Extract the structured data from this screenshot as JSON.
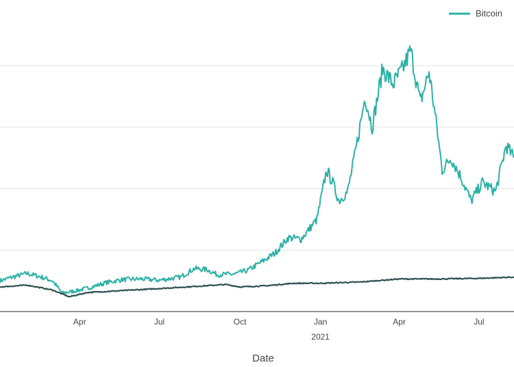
{
  "chart_data": {
    "type": "line",
    "title": "",
    "xlabel": "Date",
    "ylabel": "",
    "grid": true,
    "legend_position": "top-right",
    "x_ticks": [
      {
        "date": "2020-04-01",
        "label": "Apr",
        "sub": ""
      },
      {
        "date": "2020-07-01",
        "label": "Jul",
        "sub": ""
      },
      {
        "date": "2020-10-01",
        "label": "Oct",
        "sub": ""
      },
      {
        "date": "2021-01-01",
        "label": "Jan",
        "sub": "2021"
      },
      {
        "date": "2021-04-01",
        "label": "Apr",
        "sub": ""
      },
      {
        "date": "2021-07-01",
        "label": "Jul",
        "sub": ""
      }
    ],
    "xlim": [
      "2020-01-01",
      "2021-08-10"
    ],
    "ylim": [
      0,
      4.4
    ],
    "gridlines": [
      0,
      1,
      2,
      3,
      4
    ],
    "series": [
      {
        "name": "Bitcoin",
        "color": "#2ab0a5",
        "legend": true,
        "points": [
          [
            "2020-01-01",
            0.5
          ],
          [
            "2020-01-15",
            0.56
          ],
          [
            "2020-02-01",
            0.62
          ],
          [
            "2020-02-15",
            0.57
          ],
          [
            "2020-03-01",
            0.5
          ],
          [
            "2020-03-12",
            0.3
          ],
          [
            "2020-03-25",
            0.33
          ],
          [
            "2020-04-10",
            0.38
          ],
          [
            "2020-05-01",
            0.47
          ],
          [
            "2020-05-20",
            0.52
          ],
          [
            "2020-06-10",
            0.53
          ],
          [
            "2020-07-01",
            0.51
          ],
          [
            "2020-07-25",
            0.56
          ],
          [
            "2020-08-10",
            0.7
          ],
          [
            "2020-08-25",
            0.68
          ],
          [
            "2020-09-05",
            0.6
          ],
          [
            "2020-09-25",
            0.61
          ],
          [
            "2020-10-10",
            0.67
          ],
          [
            "2020-10-25",
            0.8
          ],
          [
            "2020-11-10",
            0.95
          ],
          [
            "2020-11-25",
            1.2
          ],
          [
            "2020-12-10",
            1.18
          ],
          [
            "2020-12-28",
            1.5
          ],
          [
            "2021-01-08",
            2.3
          ],
          [
            "2021-01-15",
            2.1
          ],
          [
            "2021-01-22",
            1.8
          ],
          [
            "2021-02-01",
            1.95
          ],
          [
            "2021-02-10",
            2.6
          ],
          [
            "2021-02-21",
            3.5
          ],
          [
            "2021-03-01",
            3.0
          ],
          [
            "2021-03-13",
            3.95
          ],
          [
            "2021-03-25",
            3.7
          ],
          [
            "2021-04-05",
            3.95
          ],
          [
            "2021-04-14",
            4.25
          ],
          [
            "2021-04-25",
            3.4
          ],
          [
            "2021-05-05",
            3.9
          ],
          [
            "2021-05-12",
            3.2
          ],
          [
            "2021-05-20",
            2.3
          ],
          [
            "2021-05-30",
            2.5
          ],
          [
            "2021-06-10",
            2.2
          ],
          [
            "2021-06-22",
            1.8
          ],
          [
            "2021-07-05",
            2.1
          ],
          [
            "2021-07-20",
            1.95
          ],
          [
            "2021-08-01",
            2.7
          ],
          [
            "2021-08-10",
            2.5
          ]
        ]
      },
      {
        "name": "",
        "color": "#2f4f4f",
        "legend": false,
        "points": [
          [
            "2020-01-01",
            0.4
          ],
          [
            "2020-02-01",
            0.43
          ],
          [
            "2020-03-01",
            0.35
          ],
          [
            "2020-03-20",
            0.24
          ],
          [
            "2020-04-10",
            0.31
          ],
          [
            "2020-06-01",
            0.35
          ],
          [
            "2020-08-01",
            0.4
          ],
          [
            "2020-09-15",
            0.44
          ],
          [
            "2020-10-01",
            0.4
          ],
          [
            "2020-11-01",
            0.42
          ],
          [
            "2020-12-01",
            0.46
          ],
          [
            "2021-01-01",
            0.46
          ],
          [
            "2021-02-15",
            0.48
          ],
          [
            "2021-04-01",
            0.53
          ],
          [
            "2021-05-15",
            0.53
          ],
          [
            "2021-07-01",
            0.54
          ],
          [
            "2021-08-10",
            0.56
          ]
        ]
      }
    ]
  }
}
